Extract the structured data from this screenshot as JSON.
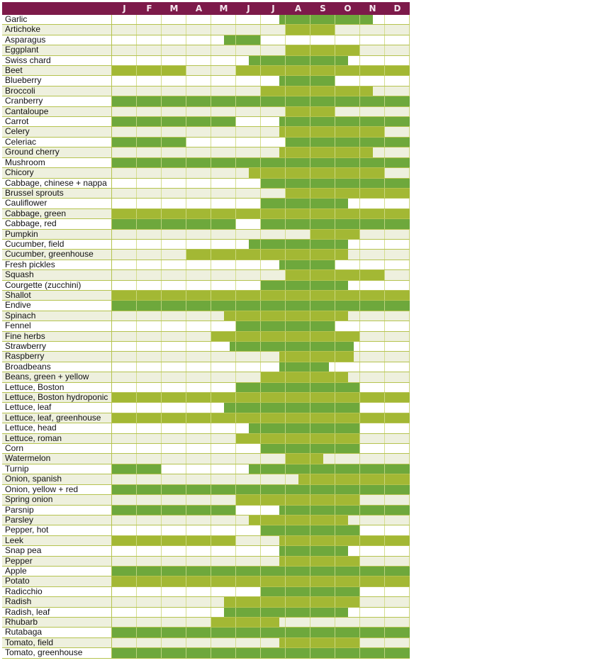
{
  "colors": {
    "header": "#7d1a4a",
    "dark_bar": "#6ea83c",
    "light_bar": "#a3b834",
    "even_row_bg": "#eef0de",
    "odd_row_bg": "#ffffff"
  },
  "months": [
    "J",
    "F",
    "M",
    "A",
    "M",
    "J",
    "J",
    "A",
    "S",
    "O",
    "N",
    "D"
  ],
  "chart_data": {
    "type": "table",
    "title": "",
    "columns": [
      "J",
      "F",
      "M",
      "A",
      "M",
      "J",
      "J",
      "A",
      "S",
      "O",
      "N",
      "D"
    ],
    "units": "month positions 0 (start of Jan) to 12 (end of Dec)",
    "rows": [
      {
        "name": "Garlic",
        "spans": [
          [
            6.75,
            10.5
          ]
        ]
      },
      {
        "name": "Artichoke",
        "spans": [
          [
            7,
            9
          ]
        ]
      },
      {
        "name": "Asparagus",
        "spans": [
          [
            4.5,
            6
          ]
        ]
      },
      {
        "name": "Eggplant",
        "spans": [
          [
            7,
            10
          ]
        ]
      },
      {
        "name": "Swiss chard",
        "spans": [
          [
            5.5,
            9.5
          ]
        ]
      },
      {
        "name": "Beet",
        "spans": [
          [
            0,
            3
          ],
          [
            5,
            12
          ]
        ]
      },
      {
        "name": "Blueberry",
        "spans": [
          [
            6.75,
            9
          ]
        ]
      },
      {
        "name": "Broccoli",
        "spans": [
          [
            6,
            10.5
          ]
        ]
      },
      {
        "name": "Cranberry",
        "spans": [
          [
            0,
            12
          ]
        ]
      },
      {
        "name": "Cantaloupe",
        "spans": [
          [
            7,
            9
          ]
        ]
      },
      {
        "name": "Carrot",
        "spans": [
          [
            0,
            5
          ],
          [
            6.75,
            12
          ]
        ]
      },
      {
        "name": "Celery",
        "spans": [
          [
            6.75,
            11
          ]
        ]
      },
      {
        "name": "Celeriac",
        "spans": [
          [
            0,
            3
          ],
          [
            7,
            12
          ]
        ]
      },
      {
        "name": "Ground cherry",
        "spans": [
          [
            6.75,
            10.5
          ]
        ]
      },
      {
        "name": "Mushroom",
        "spans": [
          [
            0,
            12
          ]
        ]
      },
      {
        "name": "Chicory",
        "spans": [
          [
            5.5,
            11
          ]
        ]
      },
      {
        "name": "Cabbage, chinese + nappa",
        "spans": [
          [
            6,
            12
          ]
        ]
      },
      {
        "name": "Brussel sprouts",
        "spans": [
          [
            7,
            12
          ]
        ]
      },
      {
        "name": "Cauliflower",
        "spans": [
          [
            6,
            9.5
          ]
        ]
      },
      {
        "name": "Cabbage, green",
        "spans": [
          [
            0,
            12
          ]
        ]
      },
      {
        "name": "Cabbage, red",
        "spans": [
          [
            0,
            5
          ],
          [
            6,
            12
          ]
        ]
      },
      {
        "name": "Pumpkin",
        "spans": [
          [
            8,
            10
          ]
        ]
      },
      {
        "name": "Cucumber, field",
        "spans": [
          [
            5.5,
            9.5
          ]
        ]
      },
      {
        "name": "Cucumber, greenhouse",
        "spans": [
          [
            3,
            9.5
          ]
        ]
      },
      {
        "name": "Fresh pickles",
        "spans": [
          [
            6.75,
            9
          ]
        ]
      },
      {
        "name": "Squash",
        "spans": [
          [
            7,
            11
          ]
        ]
      },
      {
        "name": "Courgette (zucchini)",
        "spans": [
          [
            6,
            9.5
          ]
        ]
      },
      {
        "name": "Shallot",
        "spans": [
          [
            0,
            12
          ]
        ]
      },
      {
        "name": "Endive",
        "spans": [
          [
            0,
            12
          ]
        ]
      },
      {
        "name": "Spinach",
        "spans": [
          [
            4.5,
            9.5
          ]
        ]
      },
      {
        "name": "Fennel",
        "spans": [
          [
            5,
            9
          ]
        ]
      },
      {
        "name": "Fine herbs",
        "spans": [
          [
            4,
            10
          ]
        ]
      },
      {
        "name": "Strawberry",
        "spans": [
          [
            4.75,
            9.75
          ]
        ]
      },
      {
        "name": "Raspberry",
        "spans": [
          [
            6.75,
            9.75
          ]
        ]
      },
      {
        "name": "Broadbeans",
        "spans": [
          [
            6.75,
            8.75
          ]
        ]
      },
      {
        "name": "Beans, green + yellow",
        "spans": [
          [
            6,
            9.5
          ]
        ]
      },
      {
        "name": "Lettuce, Boston",
        "spans": [
          [
            5,
            10
          ]
        ]
      },
      {
        "name": "Lettuce, Boston hydroponic",
        "spans": [
          [
            0,
            12
          ]
        ]
      },
      {
        "name": "Lettuce, leaf",
        "spans": [
          [
            4.5,
            10
          ]
        ]
      },
      {
        "name": "Lettuce, leaf, greenhouse",
        "spans": [
          [
            0,
            12
          ]
        ]
      },
      {
        "name": "Lettuce, head",
        "spans": [
          [
            5.5,
            10
          ]
        ]
      },
      {
        "name": "Lettuce, roman",
        "spans": [
          [
            5,
            10
          ]
        ]
      },
      {
        "name": "Corn",
        "spans": [
          [
            6,
            10
          ]
        ]
      },
      {
        "name": "Watermelon",
        "spans": [
          [
            7,
            8.5
          ]
        ]
      },
      {
        "name": "Turnip",
        "spans": [
          [
            0,
            2
          ],
          [
            5.5,
            12
          ]
        ]
      },
      {
        "name": "Onion, spanish",
        "spans": [
          [
            7.5,
            12
          ]
        ]
      },
      {
        "name": "Onion, yellow + red",
        "spans": [
          [
            0,
            12
          ]
        ]
      },
      {
        "name": "Spring onion",
        "spans": [
          [
            5,
            10
          ]
        ]
      },
      {
        "name": "Parsnip",
        "spans": [
          [
            0,
            5
          ],
          [
            6.75,
            12
          ]
        ]
      },
      {
        "name": "Parsley",
        "spans": [
          [
            5.5,
            9.5
          ]
        ]
      },
      {
        "name": "Pepper, hot",
        "spans": [
          [
            6,
            10
          ]
        ]
      },
      {
        "name": "Leek",
        "spans": [
          [
            0,
            5
          ],
          [
            6.75,
            12
          ]
        ]
      },
      {
        "name": "Snap pea",
        "spans": [
          [
            6.75,
            9.5
          ]
        ]
      },
      {
        "name": "Pepper",
        "spans": [
          [
            6.75,
            10
          ]
        ]
      },
      {
        "name": "Apple",
        "spans": [
          [
            0,
            12
          ]
        ]
      },
      {
        "name": "Potato",
        "spans": [
          [
            0,
            12
          ]
        ]
      },
      {
        "name": "Radicchio",
        "spans": [
          [
            6,
            10
          ]
        ]
      },
      {
        "name": "Radish",
        "spans": [
          [
            4.5,
            10
          ]
        ]
      },
      {
        "name": "Radish, leaf",
        "spans": [
          [
            4.5,
            9.5
          ]
        ]
      },
      {
        "name": "Rhubarb",
        "spans": [
          [
            4,
            6.75
          ]
        ]
      },
      {
        "name": "Rutabaga",
        "spans": [
          [
            0,
            12
          ]
        ]
      },
      {
        "name": "Tomato, field",
        "spans": [
          [
            6.75,
            10
          ]
        ]
      },
      {
        "name": "Tomato, greenhouse",
        "spans": [
          [
            0,
            12
          ]
        ]
      }
    ]
  }
}
